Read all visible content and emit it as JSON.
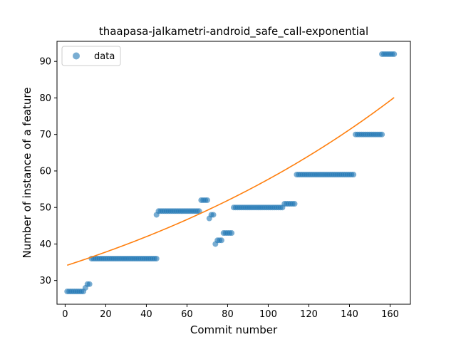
{
  "chart_data": {
    "type": "scatter",
    "title": "thaapasa-jalkametri-android_safe_call-exponential",
    "xlabel": "Commit number",
    "ylabel": "Number of instance of a feature",
    "xlim": [
      -4,
      170
    ],
    "ylim": [
      23.5,
      95.5
    ],
    "xticks": [
      0,
      20,
      40,
      60,
      80,
      100,
      120,
      140,
      160
    ],
    "yticks": [
      30,
      40,
      50,
      60,
      70,
      80,
      90
    ],
    "grid": false,
    "legend_position": "top-left",
    "colors": {
      "data": "#1f77b4",
      "fit": "#ff7f0e"
    },
    "series": [
      {
        "name": "data",
        "kind": "scatter",
        "segments": [
          {
            "x_start": 1,
            "x_end": 9,
            "y": 27
          },
          {
            "x_start": 10,
            "x_end": 10,
            "y": 28
          },
          {
            "x_start": 11,
            "x_end": 12,
            "y": 29
          },
          {
            "x_start": 13,
            "x_end": 45,
            "y": 36
          },
          {
            "x_start": 45,
            "x_end": 45,
            "y": 48
          },
          {
            "x_start": 46,
            "x_end": 66,
            "y": 49
          },
          {
            "x_start": 67,
            "x_end": 70,
            "y": 52
          },
          {
            "x_start": 71,
            "x_end": 71,
            "y": 47
          },
          {
            "x_start": 72,
            "x_end": 73,
            "y": 48
          },
          {
            "x_start": 74,
            "x_end": 74,
            "y": 40
          },
          {
            "x_start": 75,
            "x_end": 77,
            "y": 41
          },
          {
            "x_start": 78,
            "x_end": 82,
            "y": 43
          },
          {
            "x_start": 83,
            "x_end": 107,
            "y": 50
          },
          {
            "x_start": 108,
            "x_end": 113,
            "y": 51
          },
          {
            "x_start": 114,
            "x_end": 142,
            "y": 59
          },
          {
            "x_start": 143,
            "x_end": 156,
            "y": 70
          },
          {
            "x_start": 156,
            "x_end": 162,
            "y": 92
          }
        ]
      },
      {
        "kind": "line",
        "model": "exponential",
        "a": 34.0,
        "b": 0.00529,
        "c": 0.0,
        "x_range": [
          1,
          162
        ]
      }
    ]
  }
}
